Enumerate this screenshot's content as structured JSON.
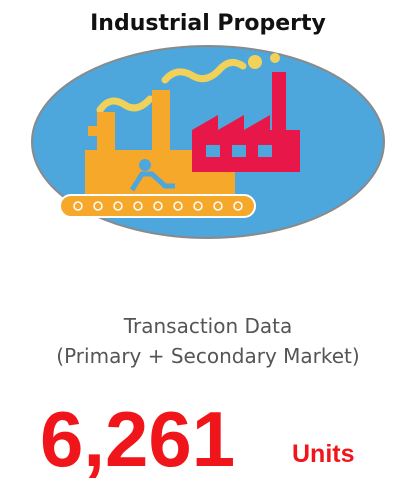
{
  "header": {
    "title": "Industrial Property"
  },
  "body": {
    "caption_line1": "Transaction Data",
    "caption_line2": "(Primary + Secondary Market)",
    "figure": "6,261",
    "unit": "Units"
  }
}
